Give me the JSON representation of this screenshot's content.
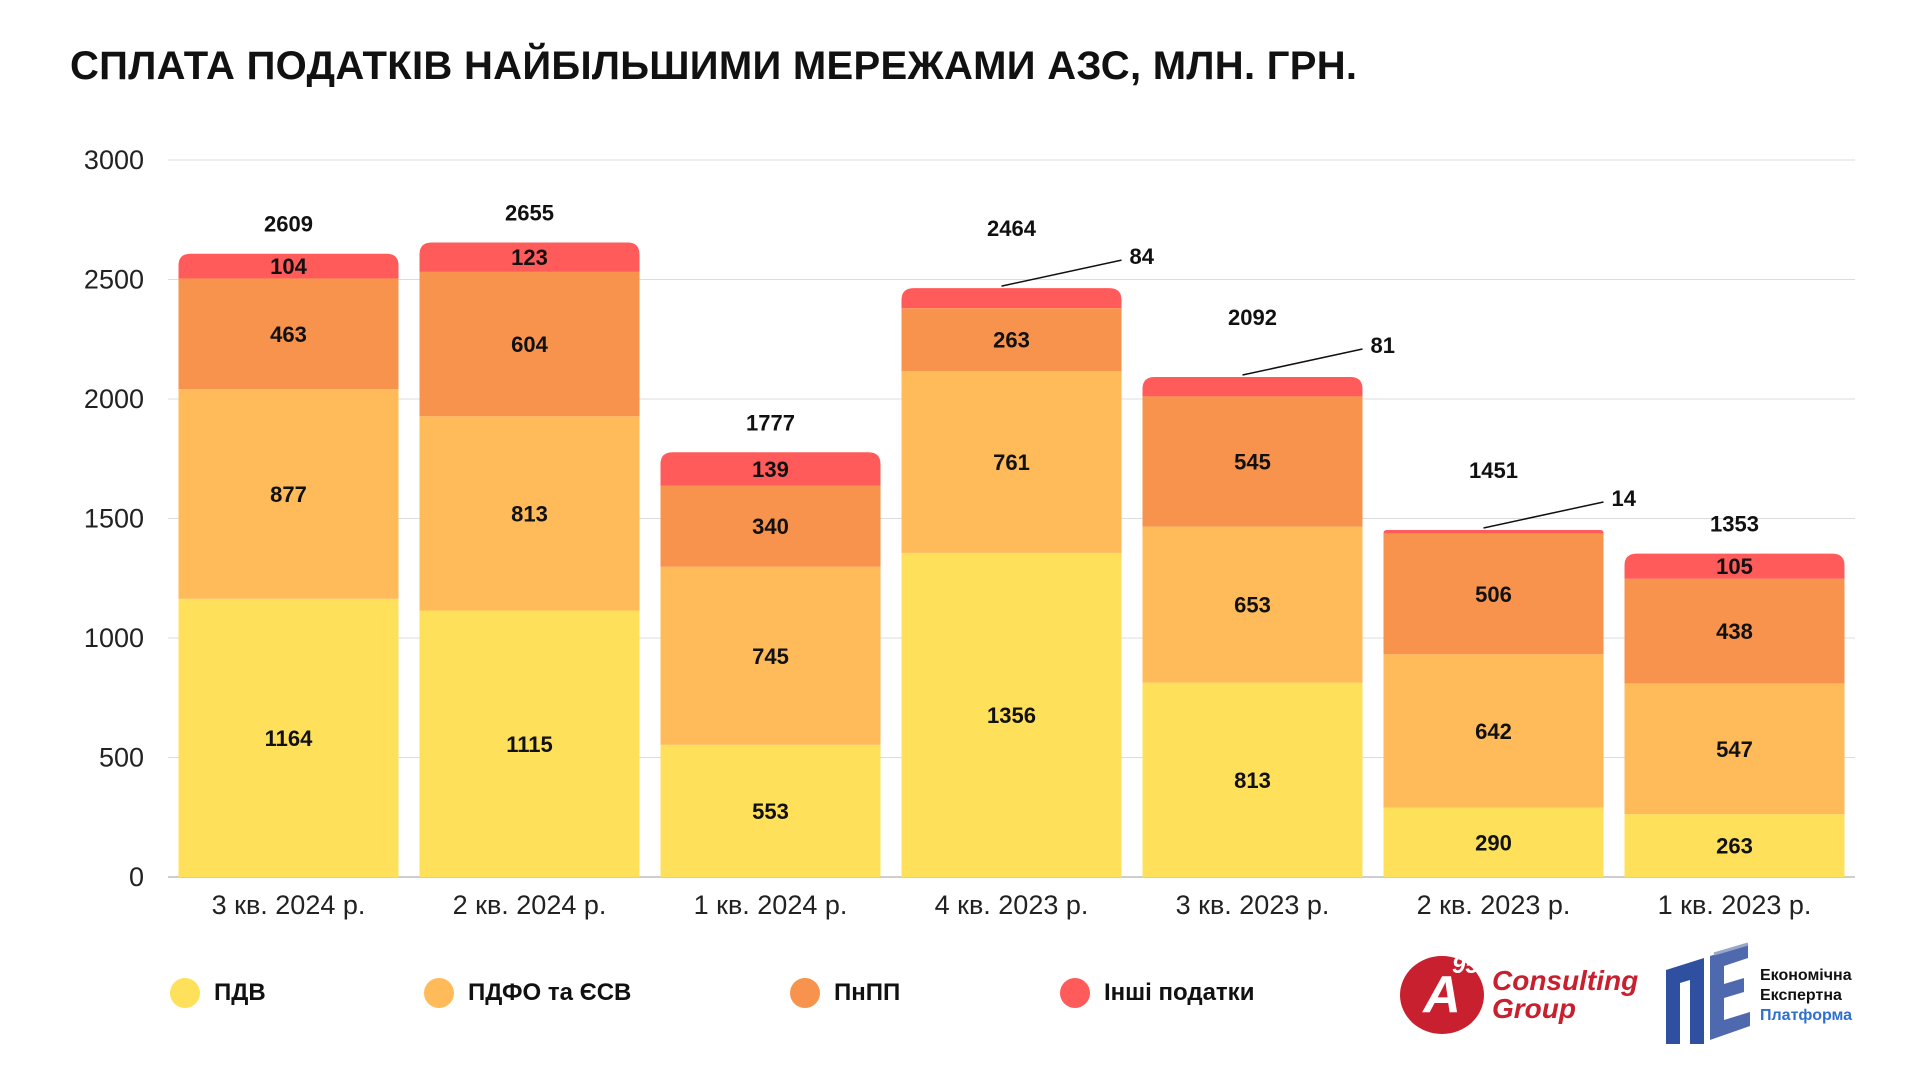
{
  "title": "СПЛАТА ПОДАТКІВ НАЙБІЛЬШИМИ МЕРЕЖАМИ АЗС, МЛН. ГРН.",
  "chart_data": {
    "type": "bar",
    "stacked": true,
    "title": "СПЛАТА ПОДАТКІВ НАЙБІЛЬШИМИ МЕРЕЖАМИ АЗС, МЛН. ГРН.",
    "xlabel": "",
    "ylabel": "",
    "ylim": [
      0,
      3000
    ],
    "yticks": [
      0,
      500,
      1000,
      1500,
      2000,
      2500,
      3000
    ],
    "grid": true,
    "legend_position": "bottom",
    "categories": [
      "3 кв. 2024 р.",
      "2 кв. 2024 р.",
      "1 кв. 2024 р.",
      "4 кв. 2023 р.",
      "3 кв. 2023 р.",
      "2 кв. 2023 р.",
      "1 кв. 2023 р."
    ],
    "series": [
      {
        "name": "ПДВ",
        "color": "#FFE05A",
        "values": [
          1164,
          1115,
          553,
          1356,
          813,
          290,
          263
        ]
      },
      {
        "name": "ПДФО та ЄСВ",
        "color": "#FFBA59",
        "values": [
          877,
          813,
          745,
          761,
          653,
          642,
          547
        ]
      },
      {
        "name": "ПнПП",
        "color": "#F7934C",
        "values": [
          463,
          604,
          340,
          263,
          545,
          506,
          438
        ]
      },
      {
        "name": "Інші податки",
        "color": "#FF5B5B",
        "values": [
          104,
          123,
          139,
          84,
          81,
          14,
          105
        ]
      }
    ],
    "totals": [
      2609,
      2655,
      1777,
      2464,
      2092,
      1451,
      1353
    ]
  },
  "legend": [
    {
      "label": "ПДВ",
      "color": "#FFE05A"
    },
    {
      "label": "ПДФО та ЄСВ",
      "color": "#FFBA59"
    },
    {
      "label": "ПнПП",
      "color": "#F7934C"
    },
    {
      "label": "Інші податки",
      "color": "#FF5B5B"
    }
  ],
  "logos": {
    "a95": {
      "mark": "A",
      "superscript": "95",
      "line1": "Consulting",
      "line2": "Group"
    },
    "eep": {
      "line1": "Економічна",
      "line2": "Експертна",
      "line3": "Платформа"
    }
  }
}
